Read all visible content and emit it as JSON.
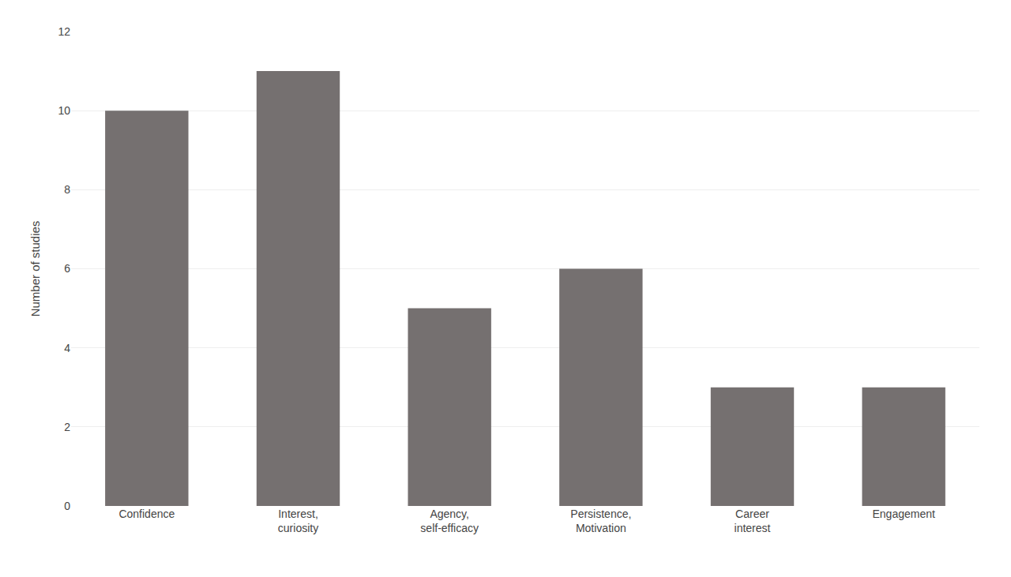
{
  "chart_data": {
    "type": "bar",
    "categories": [
      "Confidence",
      "Interest,\ncuriosity",
      "Agency,\nself-efficacy",
      "Persistence,\nMotivation",
      "Career\ninterest",
      "Engagement"
    ],
    "values": [
      10,
      11,
      5,
      6,
      3,
      3
    ],
    "color": "#757070",
    "ylabel": "Number of studies",
    "ylim": [
      0,
      12
    ],
    "yticks": [
      0,
      2,
      4,
      6,
      8,
      10,
      12
    ],
    "grid": true
  }
}
